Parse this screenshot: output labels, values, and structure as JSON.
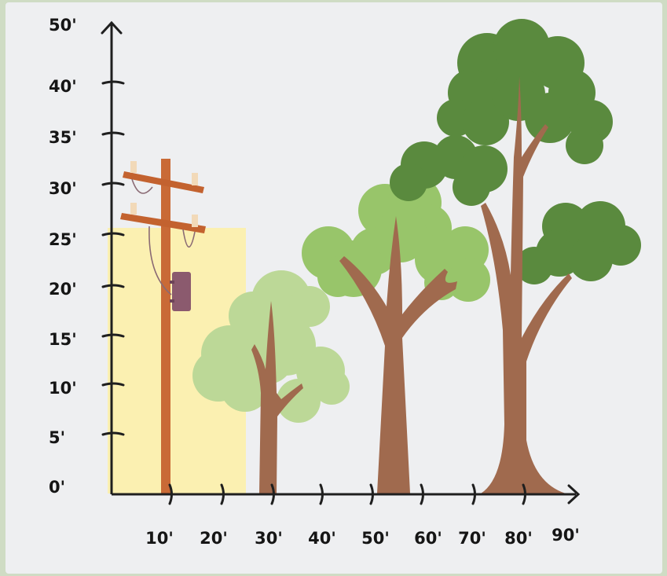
{
  "y_axis": {
    "labels": [
      "0'",
      "5'",
      "10'",
      "15'",
      "20'",
      "25'",
      "30'",
      "35'",
      "40'",
      "50'"
    ]
  },
  "x_axis": {
    "labels": [
      "10'",
      "20'",
      "30'",
      "40'",
      "50'",
      "60'",
      "70'",
      "80'",
      "90'"
    ]
  },
  "colors": {
    "background": "#eeeff1",
    "axis": "#1f1f1f",
    "safe_zone": "#fbf0b1",
    "pole": "#c96a36",
    "transformer": "#8b5a6e",
    "trunk": "#a06a4e",
    "small_tree_foliage": "#bcd897",
    "medium_tree_foliage": "#98c56a",
    "large_tree_foliage": "#5a8a3e"
  },
  "illustration": {
    "objects": [
      "utility-pole",
      "small-tree",
      "medium-tree",
      "large-tree"
    ]
  }
}
